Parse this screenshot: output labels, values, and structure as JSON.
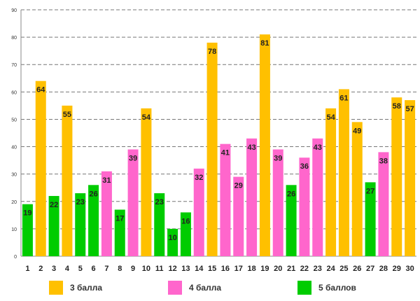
{
  "chart_data": {
    "type": "bar",
    "title": "",
    "xlabel": "",
    "ylabel": "",
    "ylim": [
      0,
      90
    ],
    "yticks": [
      0,
      10,
      20,
      30,
      40,
      50,
      60,
      70,
      80,
      90
    ],
    "grid": true,
    "categories": [
      "1",
      "2",
      "3",
      "4",
      "5",
      "6",
      "7",
      "8",
      "9",
      "10",
      "11",
      "12",
      "13",
      "14",
      "15",
      "16",
      "17",
      "18",
      "19",
      "20",
      "21",
      "22",
      "23",
      "24",
      "25",
      "26",
      "27",
      "28",
      "29",
      "30"
    ],
    "values": [
      19,
      64,
      22,
      55,
      23,
      26,
      31,
      17,
      39,
      54,
      23,
      10,
      16,
      32,
      78,
      41,
      29,
      43,
      81,
      39,
      26,
      36,
      43,
      54,
      61,
      49,
      27,
      38,
      58,
      57
    ],
    "groups": [
      "g5",
      "g3",
      "g5",
      "g3",
      "g5",
      "g5",
      "g4",
      "g5",
      "g4",
      "g3",
      "g5",
      "g5",
      "g5",
      "g4",
      "g3",
      "g4",
      "g4",
      "g4",
      "g3",
      "g4",
      "g5",
      "g4",
      "g4",
      "g3",
      "g3",
      "g3",
      "g5",
      "g4",
      "g3",
      "g3"
    ],
    "series": [
      {
        "key": "g3",
        "name": "3 балла",
        "color": "#FFC000"
      },
      {
        "key": "g4",
        "name": "4 балла",
        "color": "#FF66CC"
      },
      {
        "key": "g5",
        "name": "5 баллов",
        "color": "#00CC00"
      }
    ],
    "legend_position": "bottom"
  }
}
